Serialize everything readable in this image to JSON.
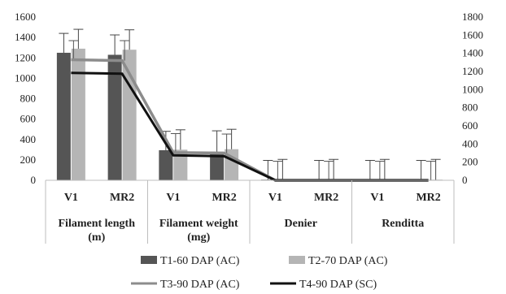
{
  "chart_data": {
    "type": "bar",
    "title": "",
    "xlabel": "",
    "ylabel": "",
    "y_left": {
      "min": 0,
      "max": 1600,
      "ticks": [
        0,
        200,
        400,
        600,
        800,
        1000,
        1200,
        1400,
        1600
      ]
    },
    "y_right": {
      "min": 0,
      "max": 1800,
      "ticks": [
        0,
        200,
        400,
        600,
        800,
        1000,
        1200,
        1400,
        1600,
        1800
      ]
    },
    "groups": [
      {
        "label": "Filament length (m)",
        "label_lines": [
          "Filament length",
          "(m)"
        ],
        "categories": [
          "V1",
          "MR2"
        ]
      },
      {
        "label": "Filament weight (mg)",
        "label_lines": [
          "Filament weight",
          "(mg)"
        ],
        "categories": [
          "V1",
          "MR2"
        ]
      },
      {
        "label": "Denier",
        "label_lines": [
          "Denier"
        ],
        "categories": [
          "V1",
          "MR2"
        ]
      },
      {
        "label": "Renditta",
        "label_lines": [
          "Renditta"
        ],
        "categories": [
          "V1",
          "MR2"
        ]
      }
    ],
    "categories": [
      "V1",
      "MR2",
      "V1",
      "MR2",
      "V1",
      "MR2",
      "V1",
      "MR2"
    ],
    "series": [
      {
        "name": "T1-60 DAP (AC)",
        "kind": "bar",
        "axis": "left",
        "color": "#555555",
        "values": [
          1250,
          1230,
          295,
          280,
          5,
          5,
          5,
          5
        ],
        "errors": [
          190,
          195,
          185,
          205,
          190,
          190,
          190,
          190
        ]
      },
      {
        "name": "T2-70 DAP (AC)",
        "kind": "bar",
        "axis": "left",
        "color": "#b5b5b5",
        "values": [
          1290,
          1280,
          300,
          305,
          5,
          5,
          5,
          5
        ],
        "errors": [
          190,
          195,
          195,
          195,
          200,
          200,
          200,
          200
        ]
      },
      {
        "name": "T3-90 DAP (AC)",
        "kind": "line",
        "axis": "right",
        "color": "#8c8c8c",
        "values": [
          1330,
          1320,
          305,
          300,
          0,
          0,
          0,
          0
        ],
        "errors": [
          210,
          220,
          210,
          210,
          210,
          210,
          210,
          210
        ]
      },
      {
        "name": "T4-90 DAP (SC)",
        "kind": "line",
        "axis": "right",
        "color": "#111111",
        "values": [
          1185,
          1175,
          275,
          265,
          0,
          0,
          0,
          0
        ],
        "errors": [
          0,
          0,
          0,
          0,
          0,
          0,
          0,
          0
        ]
      }
    ],
    "legend_position": "bottom",
    "grid": false
  }
}
